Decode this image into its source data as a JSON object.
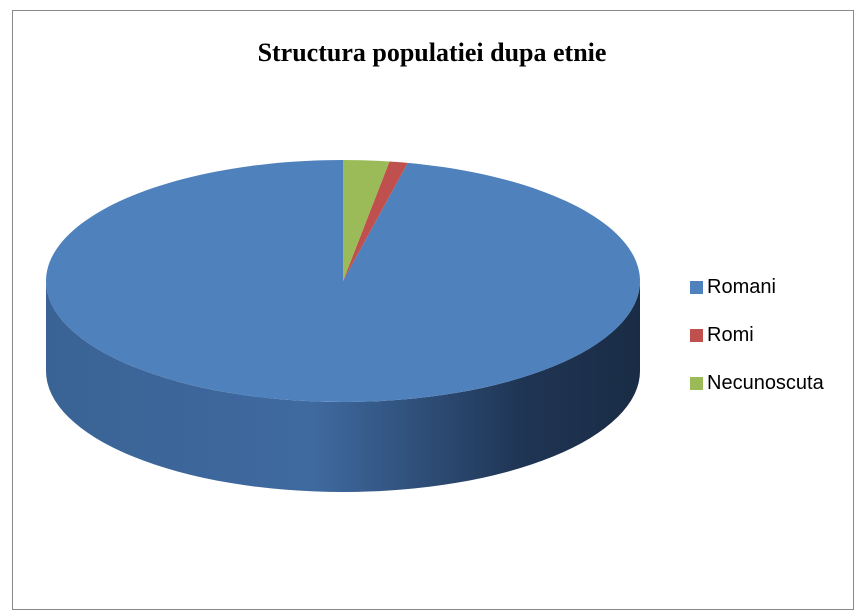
{
  "chart_data": {
    "type": "pie",
    "title": "Structura populatiei dupa etnie",
    "categories": [
      "Romani",
      "Romi",
      "Necunoscuta"
    ],
    "values": [
      96.5,
      1.0,
      2.5
    ],
    "colors": [
      "#4f81bd",
      "#c0504d",
      "#9bbb59"
    ],
    "legend_position": "right",
    "style": "3d"
  }
}
